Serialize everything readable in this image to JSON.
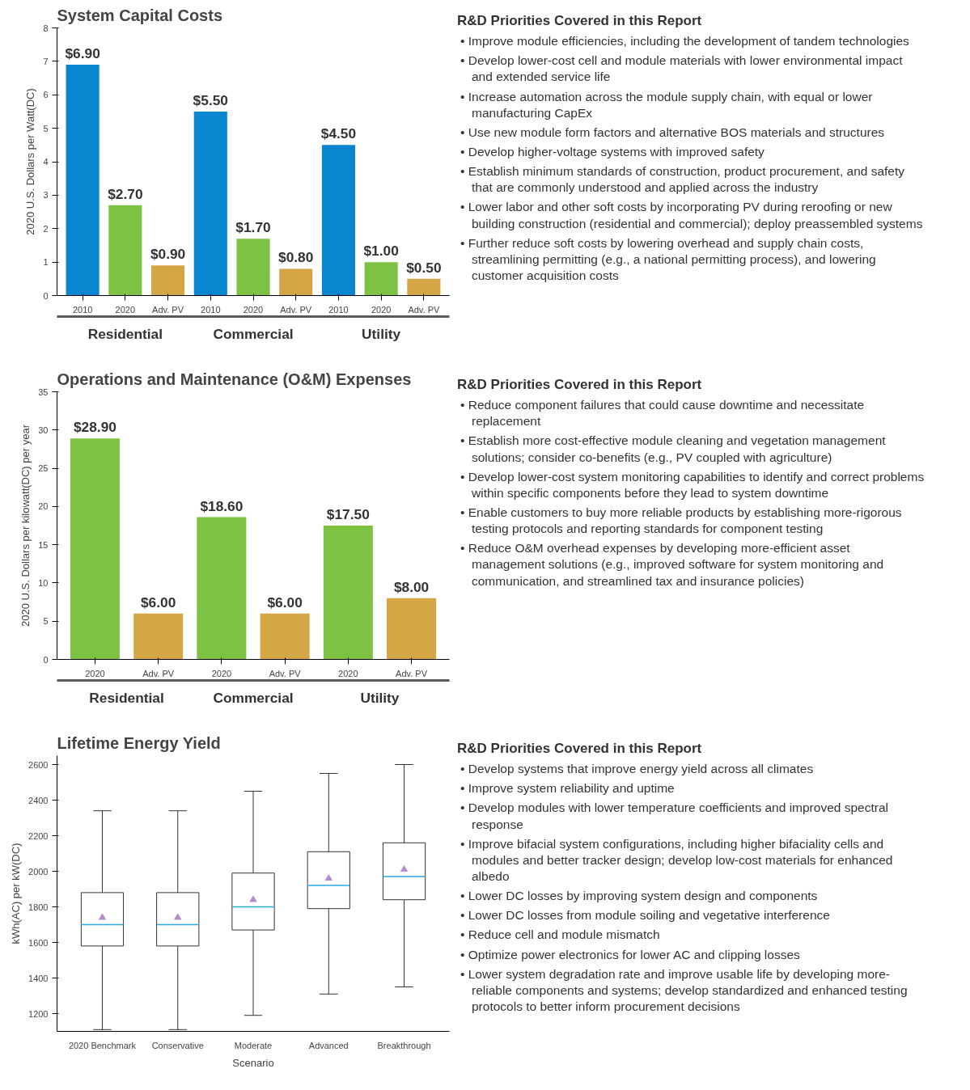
{
  "chart_data": [
    {
      "type": "bar",
      "title": "System Capital Costs",
      "ylabel": "2020 U.S. Dollars per Watt(DC)",
      "categories": [
        "2010",
        "2020",
        "Adv. PV",
        "2010",
        "2020",
        "Adv. PV",
        "2010",
        "2020",
        "Adv. PV"
      ],
      "values": [
        6.9,
        2.7,
        0.9,
        5.5,
        1.7,
        0.8,
        4.5,
        1.0,
        0.5
      ],
      "colors": [
        "#0a86d0",
        "#7dc242",
        "#d4a645",
        "#0a86d0",
        "#7dc242",
        "#d4a645",
        "#0a86d0",
        "#7dc242",
        "#d4a645"
      ],
      "value_labels": [
        "$6.90",
        "$2.70",
        "$0.90",
        "$5.50",
        "$1.70",
        "$0.80",
        "$4.50",
        "$1.00",
        "$0.50"
      ],
      "annotations": [
        "Residential",
        "Commercial",
        "Utility"
      ],
      "ylim": [
        0,
        8
      ],
      "yticks": [
        0,
        1,
        2,
        3,
        4,
        5,
        6,
        7,
        8
      ]
    },
    {
      "type": "other",
      "title": "R&D Priorities Covered in this Report",
      "annotations": [
        "• Improve module efficiencies, including the development of tandem technologies",
        "• Develop lower-cost cell and module materials with lower environmental impact and extended service life",
        "• Increase automation across the module supply chain, with equal or lower manufacturing CapEx",
        "• Use new module form factors and alternative BOS materials and structures",
        "• Develop higher-voltage systems with improved safety",
        "• Establish minimum standards of construction, product procurement, and safety that are commonly understood and applied across the industry",
        "• Lower labor and other soft costs by incorporating PV during reroofing or new building construction (residential and commercial); deploy preassembled systems",
        "• Further reduce soft costs by lowering overhead and supply chain costs, streamlining permitting (e.g., a national permitting process), and lowering customer acquisition costs"
      ]
    },
    {
      "type": "bar",
      "title": "Operations and Maintenance (O&M) Expenses",
      "ylabel": "2020 U.S. Dollars per kilowatt(DC) per year",
      "categories": [
        "2020",
        "Adv. PV",
        "2020",
        "Adv. PV",
        "2020",
        "Adv. PV"
      ],
      "values": [
        28.9,
        6.0,
        18.6,
        6.0,
        17.5,
        8.0
      ],
      "colors": [
        "#7dc242",
        "#d4a645",
        "#7dc242",
        "#d4a645",
        "#7dc242",
        "#d4a645"
      ],
      "value_labels": [
        "$28.90",
        "$6.00",
        "$18.60",
        "$6.00",
        "$17.50",
        "$8.00"
      ],
      "annotations": [
        "Residential",
        "Commercial",
        "Utility"
      ],
      "ylim": [
        0,
        35
      ],
      "yticks": [
        0,
        5,
        10,
        15,
        20,
        25,
        30,
        35
      ]
    },
    {
      "type": "other",
      "title": "R&D Priorities Covered in this Report",
      "annotations": [
        "• Reduce component failures that could cause downtime and necessitate replacement",
        "• Establish more cost-effective module cleaning and vegetation management solutions; consider co-benefits (e.g., PV coupled with agriculture)",
        "• Develop lower-cost system monitoring capabilities to identify and correct problems within specific components before they lead to system downtime",
        "• Enable customers to buy more reliable products by establishing more-rigorous testing protocols and reporting standards for component testing",
        "• Reduce O&M overhead expenses by developing more-efficient asset management solutions (e.g., improved software for system monitoring and communication, and streamlined tax and insurance policies)"
      ]
    },
    {
      "type": "box",
      "title": "Lifetime Energy Yield",
      "xlabel": "Scenario",
      "ylabel": "kWh(AC) per kW(DC)",
      "categories": [
        "2020 Benchmark",
        "Conservative",
        "Moderate",
        "Advanced",
        "Breakthrough"
      ],
      "boxes": [
        {
          "low": 1110,
          "q1": 1580,
          "median": 1700,
          "q3": 1880,
          "high": 2340,
          "mean": 1740
        },
        {
          "low": 1110,
          "q1": 1580,
          "median": 1700,
          "q3": 1880,
          "high": 2340,
          "mean": 1740
        },
        {
          "low": 1190,
          "q1": 1670,
          "median": 1800,
          "q3": 1990,
          "high": 2450,
          "mean": 1840
        },
        {
          "low": 1310,
          "q1": 1790,
          "median": 1920,
          "q3": 2110,
          "high": 2550,
          "mean": 1960
        },
        {
          "low": 1350,
          "q1": 1840,
          "median": 1970,
          "q3": 2160,
          "high": 2600,
          "mean": 2010
        }
      ],
      "ylim": [
        1100,
        2650
      ],
      "yticks": [
        1200,
        1400,
        1600,
        1800,
        2000,
        2200,
        2400,
        2600
      ]
    },
    {
      "type": "other",
      "title": "R&D Priorities Covered in this Report",
      "annotations": [
        "• Develop systems that improve energy yield across all climates",
        "• Improve system reliability and uptime",
        "• Develop modules with lower temperature coefficients and improved spectral response",
        "• Improve bifacial system configurations, including higher bifaciality cells and modules and better tracker design; develop low-cost materials for enhanced albedo",
        "• Lower DC losses by improving system design and components",
        "• Lower DC losses from module soiling and vegetative interference",
        "• Reduce cell and module mismatch",
        "• Optimize power electronics for lower AC and clipping losses",
        "• Lower system degradation rate and improve usable life by developing more-reliable components and systems; develop standardized and enhanced testing protocols to better inform procurement decisions"
      ]
    }
  ]
}
